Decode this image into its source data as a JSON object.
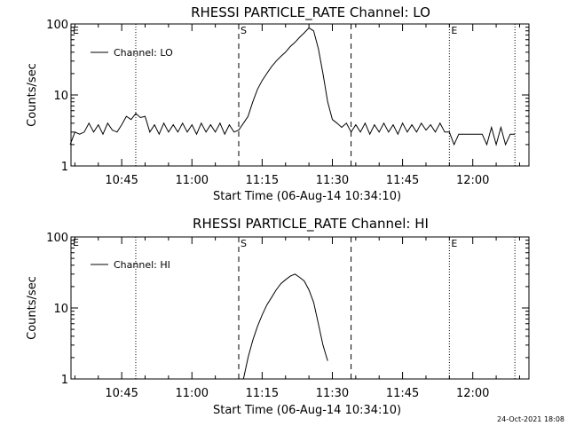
{
  "footer_timestamp": "24-Oct-2021 18:08",
  "chart_data": [
    {
      "type": "line",
      "title": "RHESSI PARTICLE_RATE Channel: LO",
      "xlabel": "Start Time (06-Aug-14 10:34:10)",
      "ylabel": "Counts/sec",
      "yscale": "log",
      "ylim": [
        1,
        100
      ],
      "xlim": [
        "10:34:10",
        "12:12:00"
      ],
      "x_tick_labels": [
        "10:45",
        "11:00",
        "11:15",
        "11:30",
        "11:45",
        "12:00"
      ],
      "y_tick_labels": [
        "1",
        "10",
        "100"
      ],
      "legend": {
        "placement": "top-left",
        "entries": [
          "Channel: LO"
        ]
      },
      "vlines": [
        {
          "time": "10:48",
          "style": "dotted",
          "label": ""
        },
        {
          "time": "11:10",
          "style": "dashed",
          "label": "S"
        },
        {
          "time": "11:34",
          "style": "dashed",
          "label": ""
        },
        {
          "time": "11:55",
          "style": "dotted",
          "label": "E"
        },
        {
          "time": "12:09",
          "style": "dotted",
          "label": ""
        }
      ],
      "edge_labels": {
        "left": "E"
      },
      "series": [
        {
          "name": "Channel: LO",
          "x": [
            "10:34",
            "10:35",
            "10:36",
            "10:37",
            "10:38",
            "10:39",
            "10:40",
            "10:41",
            "10:42",
            "10:43",
            "10:44",
            "10:45",
            "10:46",
            "10:47",
            "10:48",
            "10:49",
            "10:50",
            "10:51",
            "10:52",
            "10:53",
            "10:54",
            "10:55",
            "10:56",
            "10:57",
            "10:58",
            "10:59",
            "11:00",
            "11:01",
            "11:02",
            "11:03",
            "11:04",
            "11:05",
            "11:06",
            "11:07",
            "11:08",
            "11:09",
            "11:10",
            "11:11",
            "11:12",
            "11:13",
            "11:14",
            "11:15",
            "11:16",
            "11:17",
            "11:18",
            "11:19",
            "11:20",
            "11:21",
            "11:22",
            "11:23",
            "11:24",
            "11:25",
            "11:26",
            "11:27",
            "11:28",
            "11:29",
            "11:30",
            "11:31",
            "11:32",
            "11:33",
            "11:34",
            "11:35",
            "11:36",
            "11:37",
            "11:38",
            "11:39",
            "11:40",
            "11:41",
            "11:42",
            "11:43",
            "11:44",
            "11:45",
            "11:46",
            "11:47",
            "11:48",
            "11:49",
            "11:50",
            "11:51",
            "11:52",
            "11:53",
            "11:54",
            "11:55",
            "11:56",
            "11:57",
            "11:58",
            "11:59",
            "12:00",
            "12:01",
            "12:02",
            "12:03",
            "12:04",
            "12:05",
            "12:06",
            "12:07",
            "12:08",
            "12:09"
          ],
          "y": [
            2.0,
            3.0,
            2.8,
            3.0,
            4.0,
            3.0,
            3.8,
            2.8,
            4.0,
            3.2,
            3.0,
            3.8,
            5.0,
            4.5,
            5.5,
            4.8,
            5.0,
            3.0,
            3.8,
            2.8,
            4.0,
            3.0,
            3.8,
            3.0,
            4.0,
            3.0,
            3.8,
            2.8,
            4.0,
            3.0,
            3.8,
            3.0,
            4.0,
            2.8,
            3.8,
            3.0,
            3.2,
            4.0,
            5.0,
            8.0,
            12,
            16,
            20,
            25,
            30,
            35,
            40,
            48,
            55,
            65,
            75,
            88,
            80,
            45,
            20,
            8,
            4.5,
            4.0,
            3.5,
            4.0,
            3.0,
            3.8,
            3.0,
            4.0,
            2.8,
            3.8,
            3.0,
            4.0,
            3.0,
            3.8,
            2.8,
            4.0,
            3.0,
            3.8,
            3.0,
            4.0,
            3.2,
            3.8,
            3.0,
            4.0,
            3.0,
            3.0,
            2.0,
            2.8,
            2.8,
            2.8,
            2.8,
            2.8,
            2.8,
            2.0,
            3.5,
            2.0,
            3.5,
            2.0,
            2.8,
            2.8
          ]
        }
      ]
    },
    {
      "type": "line",
      "title": "RHESSI PARTICLE_RATE Channel: HI",
      "xlabel": "Start Time (06-Aug-14 10:34:10)",
      "ylabel": "Counts/sec",
      "yscale": "log",
      "ylim": [
        1,
        100
      ],
      "xlim": [
        "10:34:10",
        "12:12:00"
      ],
      "x_tick_labels": [
        "10:45",
        "11:00",
        "11:15",
        "11:30",
        "11:45",
        "12:00"
      ],
      "y_tick_labels": [
        "1",
        "10",
        "100"
      ],
      "legend": {
        "placement": "top-left",
        "entries": [
          "Channel: HI"
        ]
      },
      "vlines": [
        {
          "time": "10:48",
          "style": "dotted",
          "label": ""
        },
        {
          "time": "11:10",
          "style": "dashed",
          "label": "S"
        },
        {
          "time": "11:34",
          "style": "dashed",
          "label": ""
        },
        {
          "time": "11:55",
          "style": "dotted",
          "label": "E"
        },
        {
          "time": "12:09",
          "style": "dotted",
          "label": ""
        }
      ],
      "edge_labels": {
        "left": "E"
      },
      "series": [
        {
          "name": "Channel: HI",
          "x": [
            "11:11",
            "11:12",
            "11:13",
            "11:14",
            "11:15",
            "11:16",
            "11:17",
            "11:18",
            "11:19",
            "11:20",
            "11:21",
            "11:22",
            "11:23",
            "11:24",
            "11:25",
            "11:26",
            "11:27",
            "11:28",
            "11:29"
          ],
          "y": [
            1.0,
            2.0,
            3.5,
            5.5,
            8.0,
            11,
            14,
            18,
            22,
            25,
            28,
            30,
            27,
            24,
            18,
            12,
            6.0,
            3.0,
            1.8
          ]
        }
      ]
    }
  ]
}
